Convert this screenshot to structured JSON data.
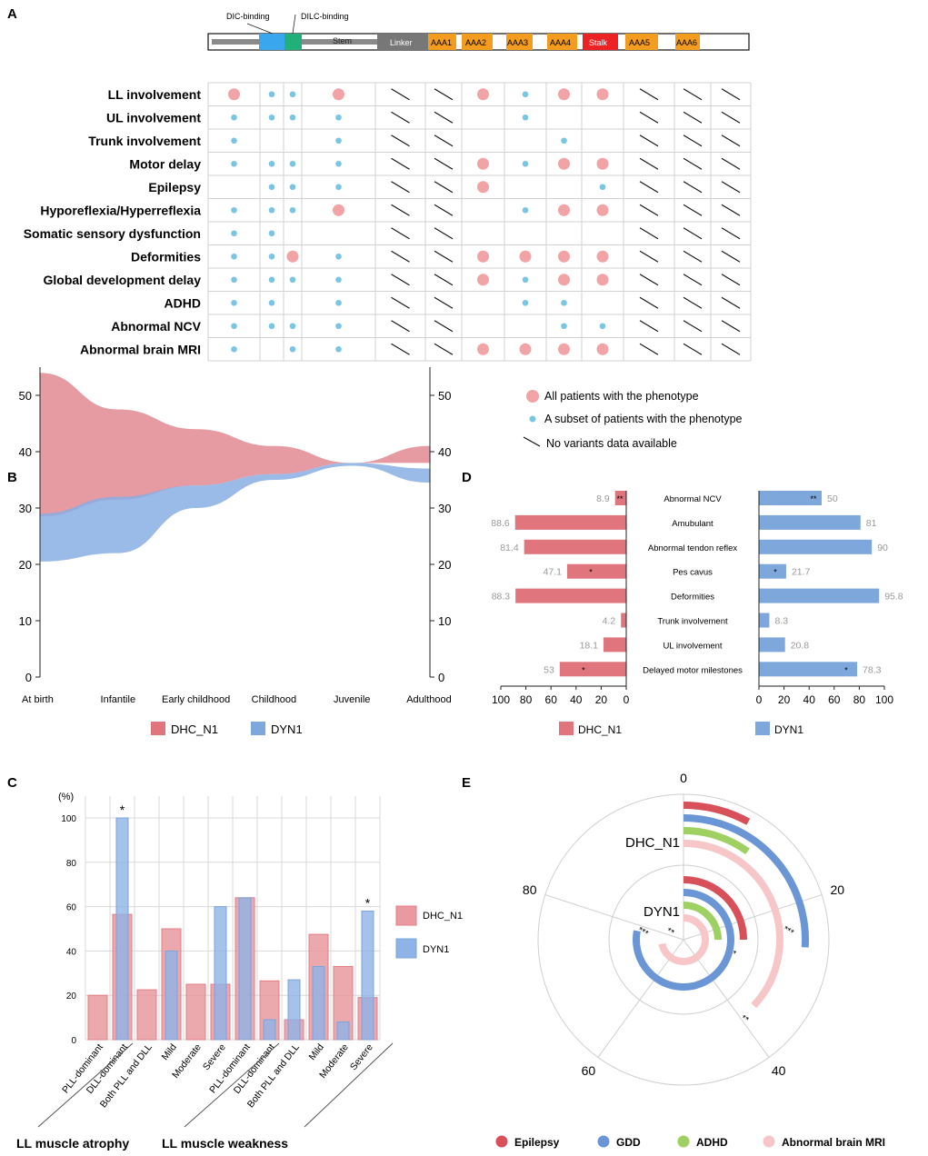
{
  "panel_labels": {
    "a": "A",
    "b": "B",
    "c": "C",
    "d": "D",
    "e": "E"
  },
  "colors": {
    "dhc": "#e0757e",
    "dyn": "#7ea7dc",
    "dhc_fill": "#e08a90",
    "dyn_fill": "#88aee3",
    "dic": "#3aa6ee",
    "dilc": "#22b07a",
    "linker": "#777777",
    "aaa": "#f39c1e",
    "stalk": "#ee2222",
    "dot_big": "#f2a3a6",
    "dot_small": "#78c5e6",
    "epilepsy": "#d8505a",
    "gdd": "#6a96d6",
    "adhd": "#9fd062",
    "mri": "#f7c6c8"
  },
  "domain_bar": {
    "dic_label": "DIC-binding",
    "dilc_label": "DILC-binding",
    "segments": [
      "Stem",
      "Linker",
      "AAA1",
      "AAA2",
      "AAA3",
      "AAA4",
      "Stalk",
      "AAA5",
      "AAA6"
    ]
  },
  "phenotype_grid": {
    "rows": [
      {
        "label": "LL involvement",
        "cells": [
          "B",
          "S",
          "S",
          "B",
          "N",
          "N",
          "B",
          "S",
          "B",
          "B",
          "N",
          "N",
          "N"
        ]
      },
      {
        "label": "UL involvement",
        "cells": [
          "S",
          "S",
          "S",
          "S",
          "N",
          "N",
          "",
          "S",
          "",
          "",
          "N",
          "N",
          "N"
        ]
      },
      {
        "label": "Trunk involvement",
        "cells": [
          "S",
          "",
          "",
          "S",
          "N",
          "N",
          "",
          "",
          "S",
          "",
          "N",
          "N",
          "N"
        ]
      },
      {
        "label": "Motor delay",
        "cells": [
          "S",
          "S",
          "S",
          "S",
          "N",
          "N",
          "B",
          "S",
          "B",
          "B",
          "N",
          "N",
          "N"
        ]
      },
      {
        "label": "Epilepsy",
        "cells": [
          "",
          "S",
          "S",
          "S",
          "N",
          "N",
          "B",
          "",
          "",
          "S",
          "N",
          "N",
          "N"
        ]
      },
      {
        "label": "Hyporeflexia/Hyperreflexia",
        "cells": [
          "S",
          "S",
          "S",
          "B",
          "N",
          "N",
          "",
          "S",
          "B",
          "B",
          "N",
          "N",
          "N"
        ]
      },
      {
        "label": "Somatic sensory dysfunction",
        "cells": [
          "S",
          "S",
          "",
          "",
          "N",
          "N",
          "",
          "",
          "",
          "",
          "N",
          "N",
          "N"
        ]
      },
      {
        "label": "Deformities",
        "cells": [
          "S",
          "S",
          "B",
          "S",
          "N",
          "N",
          "B",
          "B",
          "B",
          "B",
          "N",
          "N",
          "N"
        ]
      },
      {
        "label": "Global development delay",
        "cells": [
          "S",
          "S",
          "S",
          "S",
          "N",
          "N",
          "B",
          "S",
          "B",
          "B",
          "N",
          "N",
          "N"
        ]
      },
      {
        "label": "ADHD",
        "cells": [
          "S",
          "S",
          "",
          "S",
          "N",
          "N",
          "",
          "S",
          "S",
          "",
          "N",
          "N",
          "N"
        ]
      },
      {
        "label": "Abnormal NCV",
        "cells": [
          "S",
          "S",
          "S",
          "S",
          "N",
          "N",
          "",
          "",
          "S",
          "S",
          "N",
          "N",
          "N"
        ]
      },
      {
        "label": "Abnormal brain MRI",
        "cells": [
          "S",
          "",
          "S",
          "S",
          "N",
          "N",
          "B",
          "B",
          "B",
          "B",
          "N",
          "N",
          "N"
        ]
      }
    ],
    "legend": {
      "all": "All patients with the phenotype",
      "subset": "A subset of patients with the phenotype",
      "none": "No variants data available"
    }
  },
  "chart_data": [
    {
      "panel": "B",
      "type": "area",
      "categories": [
        "At birth",
        "Infantile",
        "Early childhood",
        "Childhood",
        "Juvenile",
        "Adulthood"
      ],
      "series": [
        {
          "name": "DHC_N1",
          "upper": [
            54,
            47.5,
            44,
            41,
            38,
            41
          ],
          "lower": [
            28.5,
            31.5,
            34,
            36,
            38,
            38
          ]
        },
        {
          "name": "DYN1",
          "upper": [
            29,
            32,
            34,
            36,
            38,
            37
          ],
          "lower": [
            20.5,
            22,
            30,
            35,
            37.5,
            34.5
          ]
        }
      ],
      "yticks": [
        0,
        10,
        20,
        30,
        40,
        50
      ],
      "ylim": [
        0,
        55
      ]
    },
    {
      "panel": "C",
      "type": "bar",
      "ylabel": "(%)",
      "yticks": [
        0,
        20,
        40,
        60,
        80,
        100
      ],
      "ylim": [
        0,
        110
      ],
      "categories": [
        "PLL-dominant",
        "DLL-dominant",
        "Both PLL and DLL",
        "Mild",
        "Moderate",
        "Severe",
        "PLL-dominant",
        "DLL-dominant",
        "Both PLL and DLL",
        "Mild",
        "Moderate",
        "Severe"
      ],
      "series": [
        {
          "name": "DHC_N1",
          "values": [
            20,
            56.5,
            22.5,
            50,
            25,
            25,
            64,
            26.5,
            9,
            47.5,
            33,
            19
          ]
        },
        {
          "name": "DYN1",
          "values": [
            0,
            100,
            0,
            40,
            0,
            60,
            64,
            9,
            27,
            33,
            8,
            58
          ]
        }
      ],
      "significance": [
        "",
        "*",
        "",
        "",
        "",
        "",
        "",
        "",
        "",
        "",
        "",
        "*"
      ],
      "groups": [
        "LL muscle atrophy",
        "LL muscle weakness"
      ]
    },
    {
      "panel": "D",
      "type": "bar",
      "categories": [
        "Abnormal NCV",
        "Amubulant",
        "Abnormal tendon reflex",
        "Pes cavus",
        "Deformities",
        "Trunk involvement",
        "UL involvement",
        "Delayed motor milestones"
      ],
      "series": [
        {
          "name": "DHC_N1",
          "values": [
            8.9,
            88.6,
            81.4,
            47.1,
            88.3,
            4.2,
            18.1,
            53
          ]
        },
        {
          "name": "DYN1",
          "values": [
            50,
            81,
            90,
            21.7,
            95.8,
            8.3,
            20.8,
            78.3
          ]
        }
      ],
      "labels_dhc": [
        "8.9",
        "88.6",
        "81.4",
        "47.1",
        "88.3",
        "4.2",
        "18.1",
        "53"
      ],
      "labels_dyn": [
        "50",
        "81",
        "90",
        "21.7",
        "95.8",
        "8.3",
        "20.8",
        "78.3"
      ],
      "markers_dhc": [
        "**",
        "",
        "",
        "*",
        "",
        "",
        "",
        "*"
      ],
      "markers_dyn": [
        "**",
        "",
        "",
        "*",
        "",
        "",
        "",
        "*"
      ],
      "xticks_dhc": [
        "100",
        "80",
        "60",
        "40",
        "20",
        "0"
      ],
      "xticks_dyn": [
        "0",
        "20",
        "40",
        "60",
        "80",
        "100"
      ],
      "xlim": [
        0,
        100
      ]
    },
    {
      "panel": "E",
      "type": "radial-bar",
      "axis_max": 100,
      "angle_ticks": [
        "0",
        "20",
        "40",
        "60",
        "80"
      ],
      "groups": [
        {
          "name": "DHC_N1",
          "bars": [
            {
              "name": "Epilepsy",
              "value": 8,
              "sig": "*"
            },
            {
              "name": "GDD",
              "value": 26,
              "sig": "***"
            },
            {
              "name": "ADHD",
              "value": 10,
              "sig": ""
            },
            {
              "name": "Abnormal brain MRI",
              "value": 37,
              "sig": "**"
            }
          ]
        },
        {
          "name": "DYN1",
          "bars": [
            {
              "name": "Epilepsy",
              "value": 25,
              "sig": "*"
            },
            {
              "name": "GDD",
              "value": 78,
              "sig": "***"
            },
            {
              "name": "ADHD",
              "value": 25,
              "sig": ""
            },
            {
              "name": "Abnormal brain MRI",
              "value": 72,
              "sig": "**"
            }
          ]
        }
      ],
      "legend": [
        "Epilepsy",
        "GDD",
        "ADHD",
        "Abnormal brain MRI"
      ]
    }
  ]
}
